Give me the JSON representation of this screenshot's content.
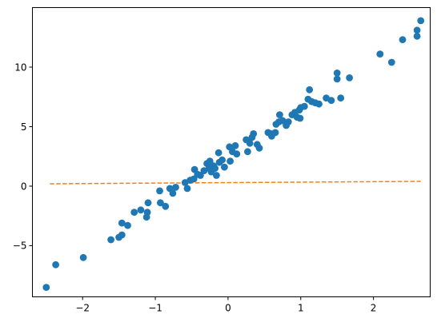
{
  "chart_data": {
    "type": "scatter",
    "title": "",
    "xlabel": "",
    "ylabel": "",
    "xlim": [
      -2.69,
      2.78
    ],
    "ylim": [
      -9.3,
      15.0
    ],
    "grid": false,
    "x_ticks": [
      -2,
      -1,
      0,
      1,
      2
    ],
    "y_ticks": [
      -5,
      0,
      5,
      10
    ],
    "series": [
      {
        "kind": "scatter",
        "color": "#1f77b4",
        "points": [
          [
            -2.5,
            -8.5
          ],
          [
            -2.37,
            -6.6
          ],
          [
            -1.99,
            -6.0
          ],
          [
            -1.61,
            -4.5
          ],
          [
            -1.5,
            -4.3
          ],
          [
            -1.46,
            -4.1
          ],
          [
            -1.46,
            -3.1
          ],
          [
            -1.38,
            -3.3
          ],
          [
            -1.29,
            -2.2
          ],
          [
            -1.2,
            -2.0
          ],
          [
            -1.12,
            -2.6
          ],
          [
            -1.11,
            -2.2
          ],
          [
            -1.1,
            -1.4
          ],
          [
            -0.94,
            -0.4
          ],
          [
            -0.93,
            -1.4
          ],
          [
            -0.86,
            -1.7
          ],
          [
            -0.8,
            -0.2
          ],
          [
            -0.76,
            -0.6
          ],
          [
            -0.72,
            -0.1
          ],
          [
            -0.59,
            0.3
          ],
          [
            -0.56,
            -0.2
          ],
          [
            -0.52,
            0.5
          ],
          [
            -0.47,
            0.6
          ],
          [
            -0.46,
            1.4
          ],
          [
            -0.42,
            1.0
          ],
          [
            -0.38,
            0.9
          ],
          [
            -0.33,
            1.3
          ],
          [
            -0.29,
            1.9
          ],
          [
            -0.26,
            1.5
          ],
          [
            -0.25,
            2.1
          ],
          [
            -0.23,
            1.2
          ],
          [
            -0.2,
            1.7
          ],
          [
            -0.18,
            1.5
          ],
          [
            -0.16,
            0.9
          ],
          [
            -0.12,
            2.0
          ],
          [
            -0.13,
            2.8
          ],
          [
            -0.08,
            2.2
          ],
          [
            -0.05,
            1.6
          ],
          [
            0.03,
            2.1
          ],
          [
            0.02,
            3.3
          ],
          [
            0.06,
            2.9
          ],
          [
            0.1,
            3.4
          ],
          [
            0.12,
            2.7
          ],
          [
            0.25,
            3.9
          ],
          [
            0.27,
            2.9
          ],
          [
            0.3,
            3.6
          ],
          [
            0.33,
            4.1
          ],
          [
            0.35,
            4.4
          ],
          [
            0.4,
            3.5
          ],
          [
            0.43,
            3.2
          ],
          [
            0.55,
            4.5
          ],
          [
            0.59,
            4.4
          ],
          [
            0.6,
            4.2
          ],
          [
            0.65,
            4.5
          ],
          [
            0.66,
            5.2
          ],
          [
            0.7,
            5.4
          ],
          [
            0.71,
            6.0
          ],
          [
            0.75,
            5.5
          ],
          [
            0.8,
            5.1
          ],
          [
            0.83,
            5.4
          ],
          [
            0.88,
            6.0
          ],
          [
            0.92,
            6.2
          ],
          [
            0.95,
            5.8
          ],
          [
            0.98,
            6.4
          ],
          [
            0.99,
            5.7
          ],
          [
            1.0,
            6.6
          ],
          [
            1.05,
            6.7
          ],
          [
            1.1,
            7.3
          ],
          [
            1.12,
            8.1
          ],
          [
            1.15,
            7.1
          ],
          [
            1.2,
            7.0
          ],
          [
            1.25,
            6.9
          ],
          [
            1.35,
            7.4
          ],
          [
            1.42,
            7.2
          ],
          [
            1.5,
            9.0
          ],
          [
            1.5,
            9.5
          ],
          [
            1.55,
            7.4
          ],
          [
            1.67,
            9.1
          ],
          [
            2.09,
            11.1
          ],
          [
            2.25,
            10.4
          ],
          [
            2.4,
            12.3
          ],
          [
            2.6,
            12.6
          ],
          [
            2.6,
            13.1
          ],
          [
            2.65,
            13.9
          ]
        ]
      },
      {
        "kind": "line",
        "style": "dashed",
        "color": "#ff7f0e",
        "points": [
          [
            -2.45,
            0.2
          ],
          [
            2.65,
            0.4
          ]
        ]
      }
    ]
  }
}
